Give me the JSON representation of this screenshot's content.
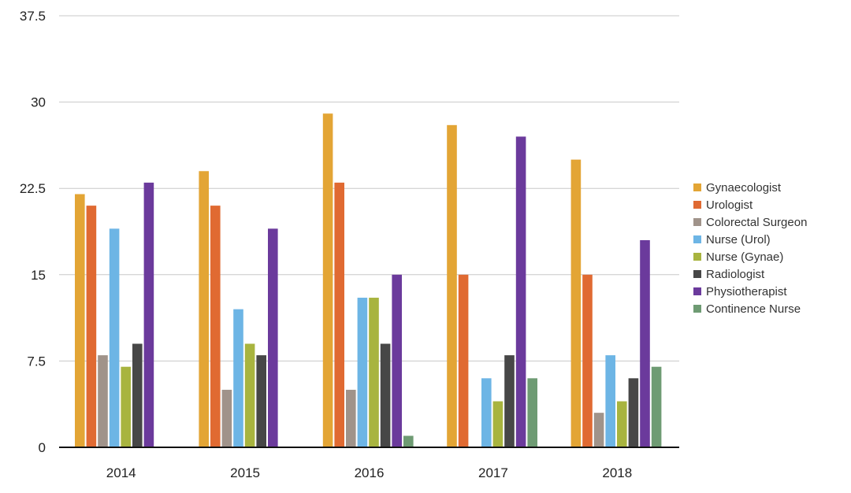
{
  "chart_data": {
    "type": "bar",
    "title": "",
    "xlabel": "",
    "ylabel": "",
    "categories": [
      "2014",
      "2015",
      "2016",
      "2017",
      "2018"
    ],
    "ylim": [
      0,
      37.5
    ],
    "yticks": [
      "0",
      "7.5",
      "15",
      "22.5",
      "30",
      "37.5"
    ],
    "ytick_values": [
      0,
      7.5,
      15,
      22.5,
      30,
      37.5
    ],
    "grid": "horizontal",
    "legend_position": "right",
    "series": [
      {
        "name": "Gynaecologist",
        "color": "#E3A535",
        "values": [
          22,
          24,
          29,
          28,
          25
        ]
      },
      {
        "name": "Urologist",
        "color": "#E06A32",
        "values": [
          21,
          21,
          23,
          15,
          15
        ]
      },
      {
        "name": "Colorectal Surgeon",
        "color": "#A0938A",
        "values": [
          8,
          5,
          5,
          0,
          3
        ]
      },
      {
        "name": "Nurse (Urol)",
        "color": "#6DB5E5",
        "values": [
          19,
          12,
          13,
          6,
          8
        ]
      },
      {
        "name": "Nurse (Gynae)",
        "color": "#A8B43F",
        "values": [
          7,
          9,
          13,
          4,
          4
        ]
      },
      {
        "name": "Radiologist",
        "color": "#474747",
        "values": [
          9,
          8,
          9,
          8,
          6
        ]
      },
      {
        "name": "Physiotherapist",
        "color": "#6B3A9C",
        "values": [
          23,
          19,
          15,
          27,
          18
        ]
      },
      {
        "name": "Continence Nurse",
        "color": "#6E9B73",
        "values": [
          0,
          0,
          1,
          6,
          7
        ]
      }
    ]
  }
}
